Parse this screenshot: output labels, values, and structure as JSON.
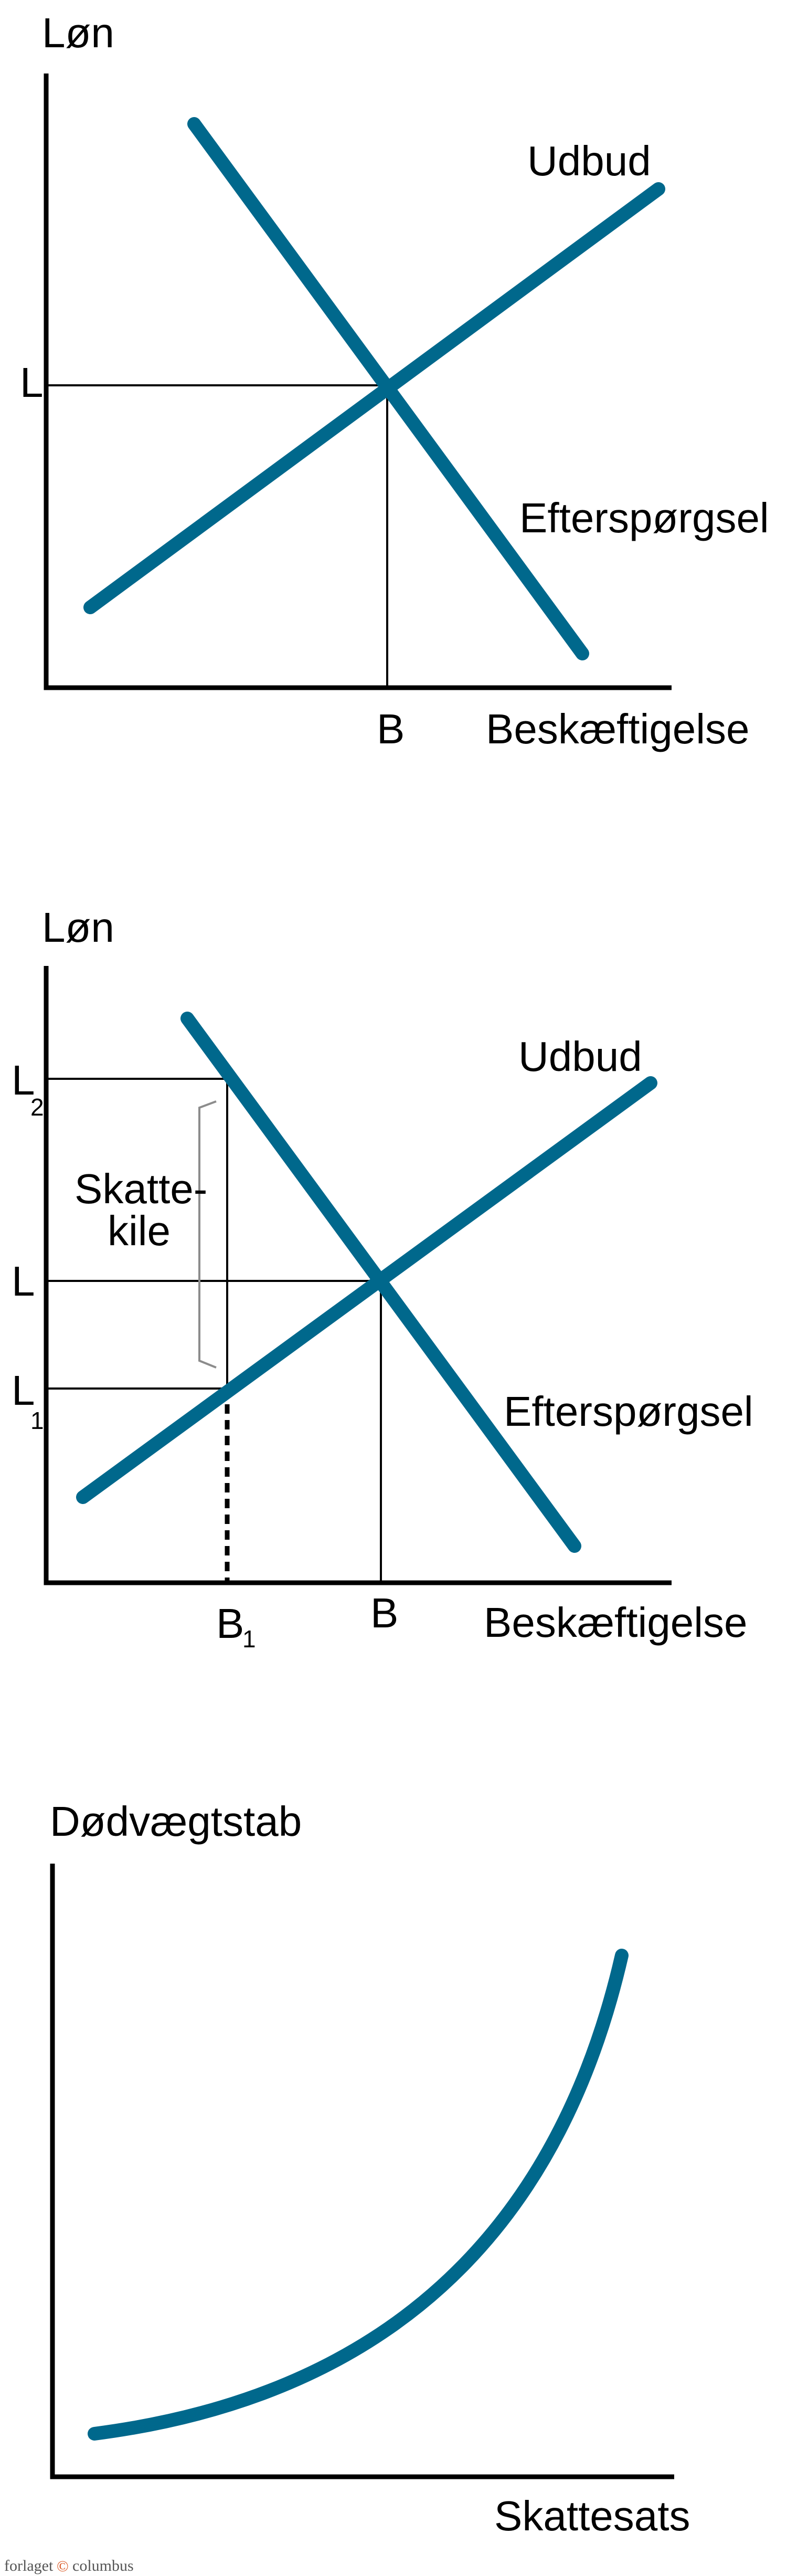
{
  "colors": {
    "curve": "#00688c",
    "axis": "#000000",
    "brace": "#8c8c8c"
  },
  "diagram1": {
    "y_label": "Løn",
    "x_label": "Beskæftigelse",
    "supply_label": "Udbud",
    "demand_label": "Efterspørgsel",
    "wage_tick": "L",
    "employment_tick": "B"
  },
  "diagram2": {
    "y_label": "Løn",
    "x_label": "Beskæftigelse",
    "supply_label": "Udbud",
    "demand_label": "Efterspørgsel",
    "wage2_tick": "L",
    "wage2_sub": "2",
    "wage_tick": "L",
    "wage1_tick": "L",
    "wage1_sub": "1",
    "employment1_tick": "B",
    "employment1_sub": "1",
    "employment_tick": "B",
    "wedge_line1": "Skatte-",
    "wedge_line2": "kile"
  },
  "diagram3": {
    "y_label": "Dødvægtstab",
    "x_label": "Skattesats"
  },
  "footer": {
    "publisher_left": "forlaget",
    "publisher_logo": "©",
    "publisher_right": "columbus"
  }
}
